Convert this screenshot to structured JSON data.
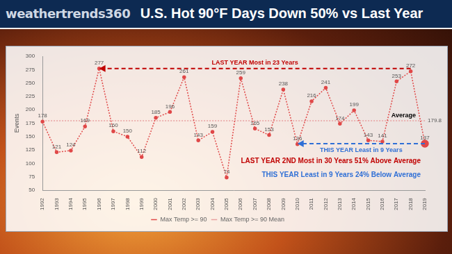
{
  "header": {
    "logo": "weathertrends360",
    "title": "U.S. Hot 90°F Days Down 50% vs Last Year"
  },
  "chart_data": {
    "type": "line",
    "categories": [
      "1992",
      "1993",
      "1994",
      "1995",
      "1996",
      "1997",
      "1998",
      "1999",
      "2000",
      "2001",
      "2002",
      "2003",
      "2004",
      "2005",
      "2006",
      "2007",
      "2008",
      "2009",
      "2010",
      "2011",
      "2012",
      "2013",
      "2014",
      "2015",
      "2016",
      "2017",
      "2018",
      "2019"
    ],
    "series": [
      {
        "name": "Max Temp >= 90",
        "color": "#e04848",
        "line_style": "dotted",
        "marker": "circle",
        "values": [
          178,
          121,
          124,
          169,
          277,
          160,
          150,
          112,
          185,
          196,
          261,
          143,
          159,
          74,
          259,
          165,
          153,
          238,
          136,
          216,
          241,
          174,
          199,
          143,
          141,
          253,
          272,
          137
        ]
      }
    ],
    "mean": {
      "name": "Max Temp >= 90 Mean",
      "value": 179.8,
      "color": "#e8a0a0",
      "line_style": "dotted",
      "label": "Average"
    },
    "y_label": "Events",
    "ylim": [
      50,
      300
    ],
    "yticks": [
      50,
      75,
      100,
      125,
      150,
      175,
      200,
      225,
      250,
      275,
      300
    ],
    "grid": false,
    "legend": "bottom",
    "data_labels": true,
    "annotations": [
      {
        "text": "LAST YEAR Most in 23 Years",
        "color": "#c00000",
        "arrow_from": "2018",
        "arrow_to": "1996",
        "y": 277
      },
      {
        "text": "THIS YEAR Least in 9 Years",
        "color": "#2f6fd6",
        "arrow_from": "2019",
        "arrow_to": "2010",
        "y": 137
      },
      {
        "text": "LAST YEAR 2ND Most in 30 Years 51% Above Average",
        "color": "#c00000"
      },
      {
        "text": "THIS YEAR Least in 9 Years 24% Below Average",
        "color": "#2f6fd6"
      }
    ]
  }
}
